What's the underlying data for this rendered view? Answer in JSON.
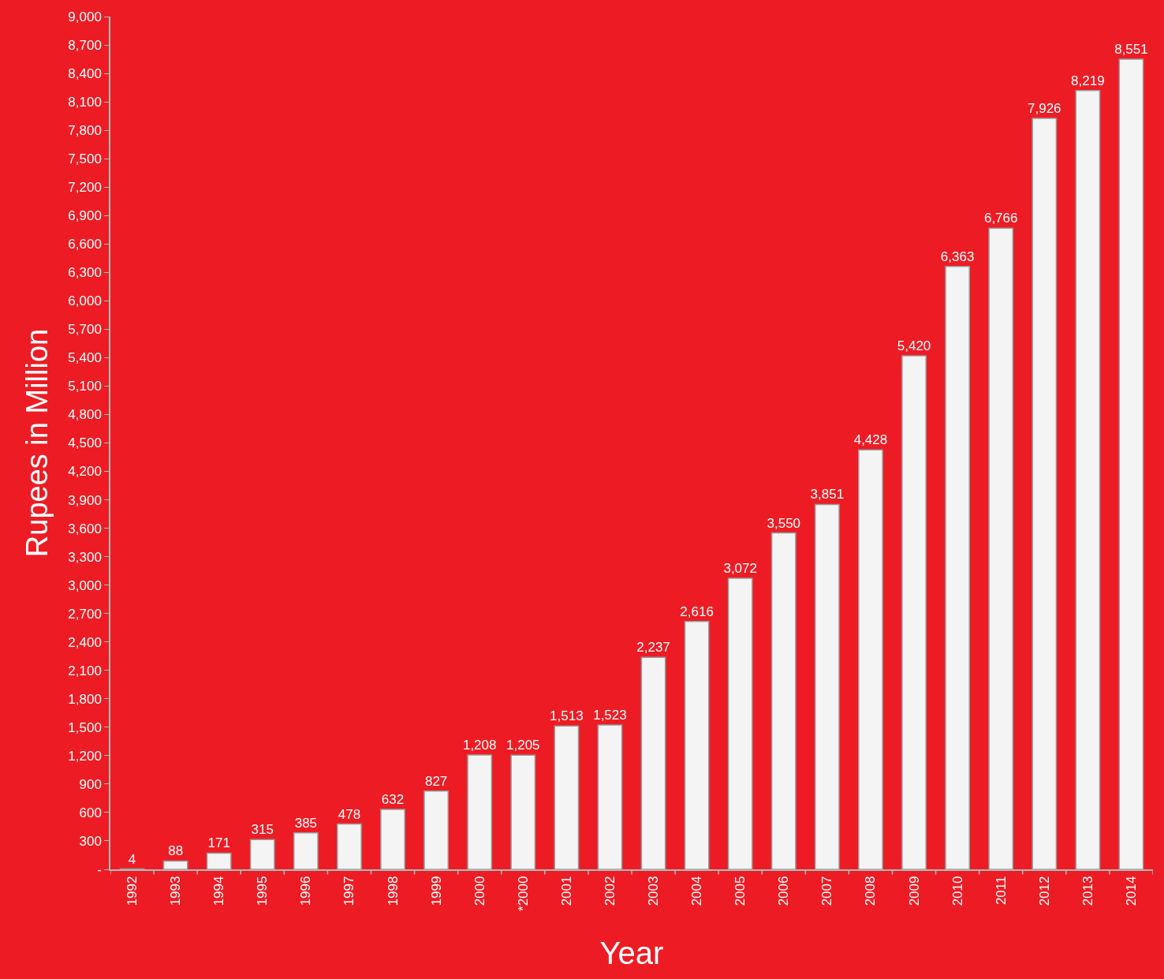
{
  "chart_data": {
    "type": "bar",
    "xlabel": "Year",
    "ylabel": "Rupees in Million",
    "categories": [
      "1992",
      "1993",
      "1994",
      "1995",
      "1996",
      "1997",
      "1998",
      "1999",
      "2000",
      "*2000",
      "2001",
      "2002",
      "2003",
      "2004",
      "2005",
      "2006",
      "2007",
      "2008",
      "2009",
      "2010",
      "2011",
      "2012",
      "2013",
      "2014"
    ],
    "values": [
      4,
      88,
      171,
      315,
      385,
      478,
      632,
      827,
      1208,
      1205,
      1513,
      1523,
      2237,
      2616,
      3072,
      3550,
      3851,
      4428,
      5420,
      6363,
      6766,
      7926,
      8219,
      8551
    ],
    "color": "#f4f4f4",
    "ylim": [
      0,
      9000
    ],
    "yticks": [
      {
        "value": 0,
        "label": "-"
      },
      {
        "value": 300,
        "label": "300"
      },
      {
        "value": 600,
        "label": "600"
      },
      {
        "value": 900,
        "label": "900"
      },
      {
        "value": 1200,
        "label": "1,200"
      },
      {
        "value": 1500,
        "label": "1,500"
      },
      {
        "value": 1800,
        "label": "1,800"
      },
      {
        "value": 2100,
        "label": "2,100"
      },
      {
        "value": 2400,
        "label": "2,400"
      },
      {
        "value": 2700,
        "label": "2,700"
      },
      {
        "value": 3000,
        "label": "3,000"
      },
      {
        "value": 3300,
        "label": "3,300"
      },
      {
        "value": 3600,
        "label": "3,600"
      },
      {
        "value": 3900,
        "label": "3,900"
      },
      {
        "value": 4200,
        "label": "4,200"
      },
      {
        "value": 4500,
        "label": "4,500"
      },
      {
        "value": 4800,
        "label": "4,800"
      },
      {
        "value": 5100,
        "label": "5,100"
      },
      {
        "value": 5400,
        "label": "5,400"
      },
      {
        "value": 5700,
        "label": "5,700"
      },
      {
        "value": 6000,
        "label": "6,000"
      },
      {
        "value": 6300,
        "label": "6,300"
      },
      {
        "value": 6600,
        "label": "6,600"
      },
      {
        "value": 6900,
        "label": "6,900"
      },
      {
        "value": 7200,
        "label": "7,200"
      },
      {
        "value": 7500,
        "label": "7,500"
      },
      {
        "value": 7800,
        "label": "7,800"
      },
      {
        "value": 8100,
        "label": "8,100"
      },
      {
        "value": 8400,
        "label": "8,400"
      },
      {
        "value": 8700,
        "label": "8,700"
      },
      {
        "value": 9000,
        "label": "9,000"
      }
    ],
    "value_labels": [
      "4",
      "88",
      "171",
      "315",
      "385",
      "478",
      "632",
      "827",
      "1,208",
      "1,205",
      "1,513",
      "1,523",
      "2,237",
      "2,616",
      "3,072",
      "3,550",
      "3,851",
      "4,428",
      "5,420",
      "6,363",
      "6,766",
      "7,926",
      "8,219",
      "8,551"
    ],
    "grid": false,
    "legend": false
  }
}
